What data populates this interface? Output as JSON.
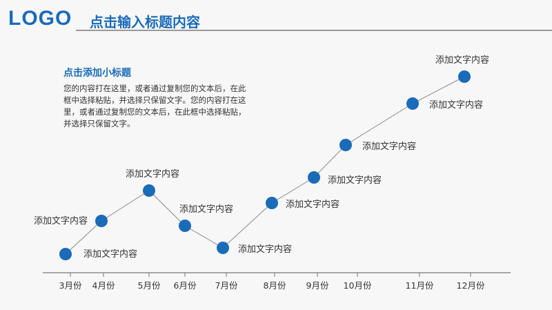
{
  "header": {
    "logo": "LOGO",
    "title": "点击输入标题内容"
  },
  "intro": {
    "subtitle": "点击添加小标题",
    "body": "您的内容打在这里，或者通过复制您的文本后，在此框中选择粘贴，并选择只保留文字。您的内容打在这里，或者通过复制您的文本后，在此框中选择粘贴，并选择只保留文字。"
  },
  "colors": {
    "accent": "#1a6bb8",
    "marker": "#1a6bb8",
    "line": "#888888",
    "axis": "#777777"
  },
  "chart_data": {
    "type": "line",
    "x_type": "month",
    "categories": [
      "3月份",
      "4月份",
      "5月份",
      "6月份",
      "7月份",
      "8月份",
      "9月份",
      "10月份",
      "11月份",
      "12月份"
    ],
    "x_positions": [
      3,
      4,
      5,
      6,
      7,
      8,
      9,
      10,
      11,
      12
    ],
    "values": [
      1.0,
      2.6,
      3.9,
      2.4,
      1.2,
      3.1,
      4.4,
      6.0,
      8.1,
      9.4
    ],
    "ylim": [
      0,
      10
    ],
    "point_labels": [
      "添加文字内容",
      "添加文字内容",
      "添加文字内容",
      "添加文字内容",
      "添加文字内容",
      "添加文字内容",
      "添加文字内容",
      "添加文字内容",
      "添加文字内容",
      "添加文字内容"
    ],
    "grid": false,
    "legend": "none",
    "title": "",
    "xlabel": "",
    "ylabel": ""
  }
}
